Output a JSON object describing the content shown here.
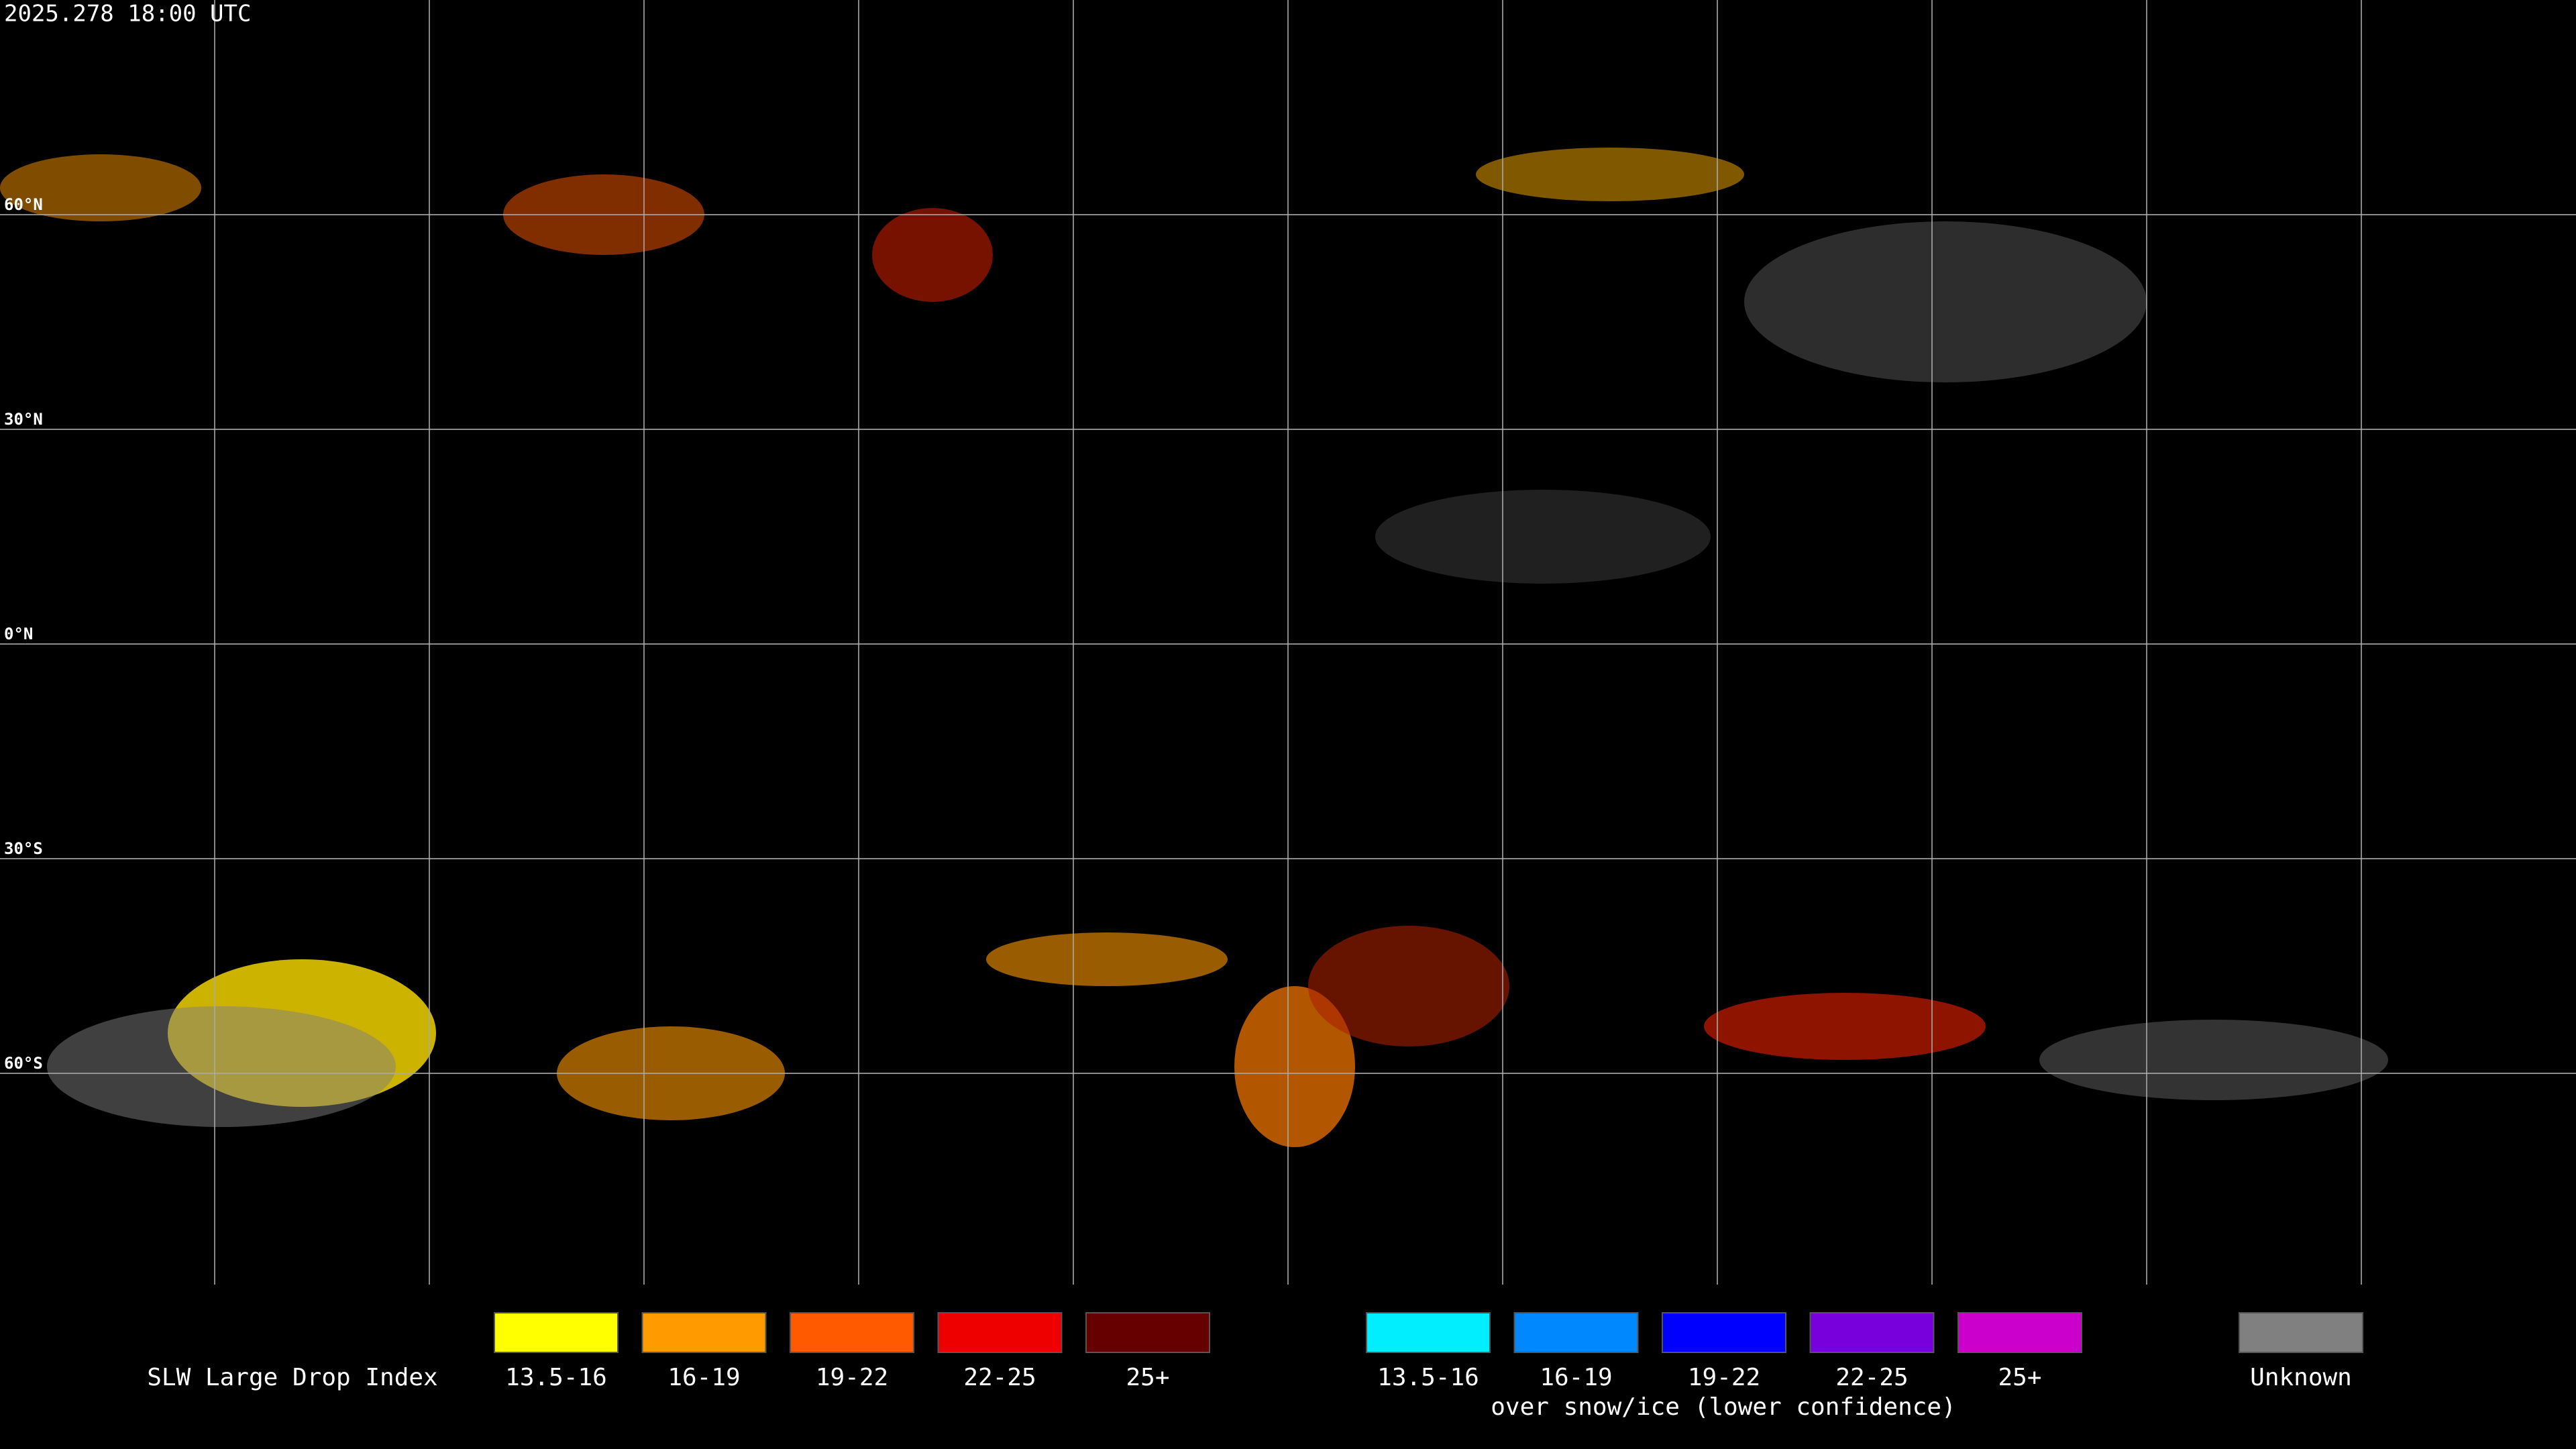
{
  "header": {
    "timestamp": "2025.278 18:00 UTC"
  },
  "map": {
    "latitude_labels": [
      "60°N",
      "30°N",
      "0°N",
      "30°S",
      "60°S"
    ]
  },
  "legend": {
    "title": "SLW Large Drop Index",
    "water": [
      {
        "label": "13.5-16",
        "color": "#ffff00"
      },
      {
        "label": "16-19",
        "color": "#ff9a00"
      },
      {
        "label": "19-22",
        "color": "#ff5a00"
      },
      {
        "label": "22-25",
        "color": "#ee0000"
      },
      {
        "label": "25+",
        "color": "#660000"
      }
    ],
    "snow_ice": [
      {
        "label": "13.5-16",
        "color": "#00eeff"
      },
      {
        "label": "16-19",
        "color": "#0088ff"
      },
      {
        "label": "19-22",
        "color": "#0000ff"
      },
      {
        "label": "22-25",
        "color": "#7700dd"
      },
      {
        "label": "25+",
        "color": "#cc00cc"
      }
    ],
    "snow_ice_note": "over snow/ice (lower confidence)",
    "unknown": {
      "label": "Unknown",
      "color": "#808080"
    }
  }
}
